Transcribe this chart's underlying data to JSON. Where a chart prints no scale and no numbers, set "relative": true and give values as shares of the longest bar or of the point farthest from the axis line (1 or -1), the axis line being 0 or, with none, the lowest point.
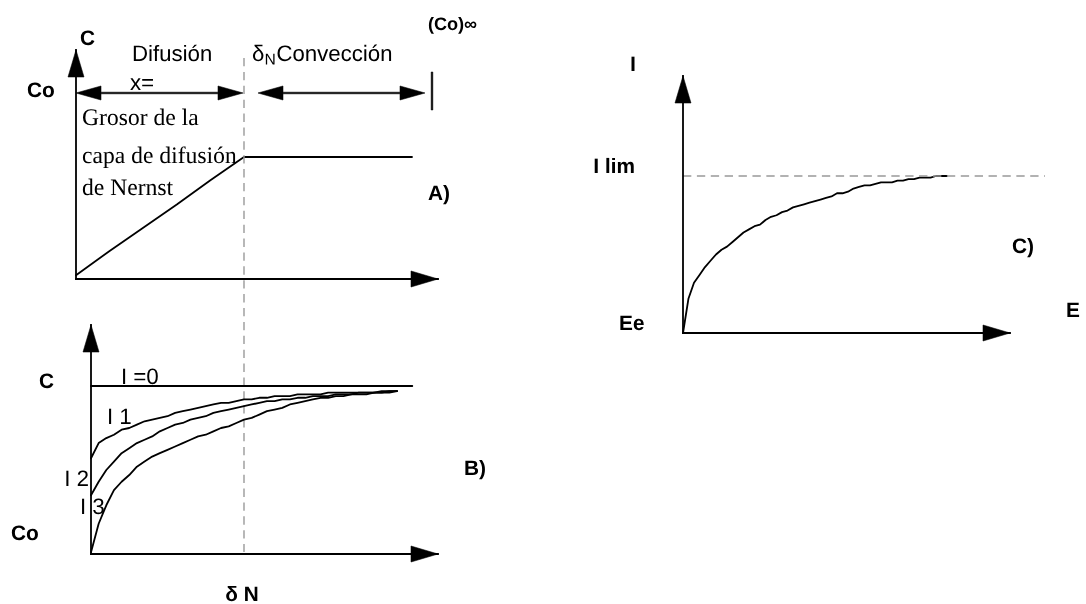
{
  "chart_data": [
    {
      "type": "line",
      "ylabel": "C",
      "relative": true,
      "categories": [
        null,
        null,
        null,
        null,
        null,
        null,
        null,
        null,
        null,
        null,
        null
      ],
      "series": [
        {
          "color": "#000000",
          "values": [
            0.03,
            0.23,
            0.42,
            0.61,
            0.81,
            1,
            1,
            1,
            1,
            1,
            1
          ]
        }
      ],
      "annotations": [
        "Co",
        "Difusión",
        "x=",
        "Grosor de la",
        "capa de difusión",
        "de Nernst",
        "δ$_{N}$Convección",
        "(Co)∞",
        "A)"
      ]
    },
    {
      "type": "line",
      "relative": true,
      "categories": [
        null,
        null,
        null,
        null,
        null,
        null,
        null,
        null,
        null,
        null,
        null,
        null,
        null,
        null,
        null,
        null,
        null,
        null,
        null,
        null,
        null,
        null,
        null,
        null,
        null,
        null,
        null,
        null,
        null,
        null,
        null,
        null,
        null,
        null,
        null,
        null,
        null,
        null,
        null,
        null,
        null,
        null,
        null
      ],
      "series": [
        {
          "name": "I =0",
          "color": "#000000",
          "values": [
            1,
            1,
            1,
            1,
            1,
            1,
            1,
            1,
            1,
            1,
            1,
            1,
            1,
            1,
            1,
            1,
            1,
            1,
            1,
            1,
            1,
            1,
            1,
            1,
            1,
            1,
            1,
            1,
            1,
            1,
            1,
            1,
            1,
            1,
            1,
            1,
            1,
            1,
            1,
            1,
            1,
            1,
            1
          ]
        },
        {
          "name": "I 1",
          "color": "#000000",
          "values": [
            0.57,
            0.66,
            0.69,
            0.71,
            0.74,
            0.75,
            0.77,
            0.79,
            0.8,
            0.81,
            0.82,
            0.84,
            0.85,
            0.86,
            0.87,
            0.88,
            0.89,
            0.9,
            0.9,
            0.91,
            0.92,
            0.92,
            0.93,
            0.93,
            0.94,
            0.94,
            0.94,
            0.95,
            0.95,
            0.95,
            0.95,
            0.96,
            0.96,
            0.96,
            0.96,
            0.96,
            0.96,
            0.96,
            0.97,
            0.97,
            0.97,
            null,
            null
          ]
        },
        {
          "name": "I 2",
          "color": "#000000",
          "values": [
            0.35,
            0.43,
            0.5,
            0.55,
            0.6,
            0.63,
            0.66,
            0.68,
            0.7,
            0.73,
            0.75,
            0.77,
            0.78,
            0.8,
            0.81,
            0.82,
            0.84,
            0.85,
            0.86,
            0.87,
            0.88,
            0.89,
            0.9,
            0.91,
            0.91,
            0.92,
            0.92,
            0.93,
            0.93,
            0.94,
            0.94,
            0.94,
            0.95,
            0.95,
            0.95,
            0.96,
            0.96,
            0.96,
            0.96,
            0.97,
            0.97,
            null,
            null
          ]
        },
        {
          "name": "I 3",
          "color": "#000000",
          "values": [
            0.01,
            0.18,
            0.29,
            0.38,
            0.43,
            0.47,
            0.52,
            0.55,
            0.58,
            0.6,
            0.62,
            0.64,
            0.66,
            0.68,
            0.7,
            0.71,
            0.73,
            0.75,
            0.76,
            0.78,
            0.8,
            0.81,
            0.83,
            0.85,
            0.86,
            0.87,
            0.89,
            0.9,
            0.91,
            0.92,
            0.93,
            0.93,
            0.94,
            0.94,
            0.95,
            0.95,
            0.95,
            0.96,
            0.96,
            0.96,
            0.97,
            null,
            null
          ]
        }
      ],
      "annotations": [
        "C",
        "Co",
        "δ N",
        "B)"
      ]
    },
    {
      "type": "line",
      "xlabel": "E",
      "ylabel": "I",
      "relative": true,
      "categories": [
        null,
        null,
        null,
        null,
        null,
        null,
        null,
        null,
        null,
        null,
        null,
        null,
        null,
        null,
        null,
        null,
        null,
        null,
        null,
        null,
        null,
        null,
        null,
        null,
        null,
        null,
        null,
        null,
        null,
        null,
        null,
        null,
        null,
        null,
        null,
        null,
        null,
        null,
        null,
        null,
        null,
        null,
        null,
        null,
        null,
        null,
        null,
        null,
        null
      ],
      "series": [
        {
          "color": "#000000",
          "values": [
            0,
            0.22,
            0.32,
            0.37,
            0.42,
            0.46,
            0.5,
            0.53,
            0.55,
            0.58,
            0.61,
            0.64,
            0.66,
            0.68,
            0.69,
            0.72,
            0.74,
            0.75,
            0.77,
            0.78,
            0.8,
            0.81,
            0.82,
            0.83,
            0.84,
            0.85,
            0.86,
            0.87,
            0.89,
            0.89,
            0.9,
            0.92,
            0.93,
            0.94,
            0.94,
            0.95,
            0.96,
            0.96,
            0.96,
            0.97,
            0.97,
            0.98,
            0.98,
            0.99,
            0.99,
            0.99,
            1,
            1,
            1
          ]
        }
      ],
      "ref_lines": [
        {
          "axis": "y",
          "value": 1,
          "label": "I lim",
          "color": "#999999",
          "line_style": "dashed"
        }
      ],
      "annotations": [
        "Ee",
        "C)"
      ]
    }
  ]
}
